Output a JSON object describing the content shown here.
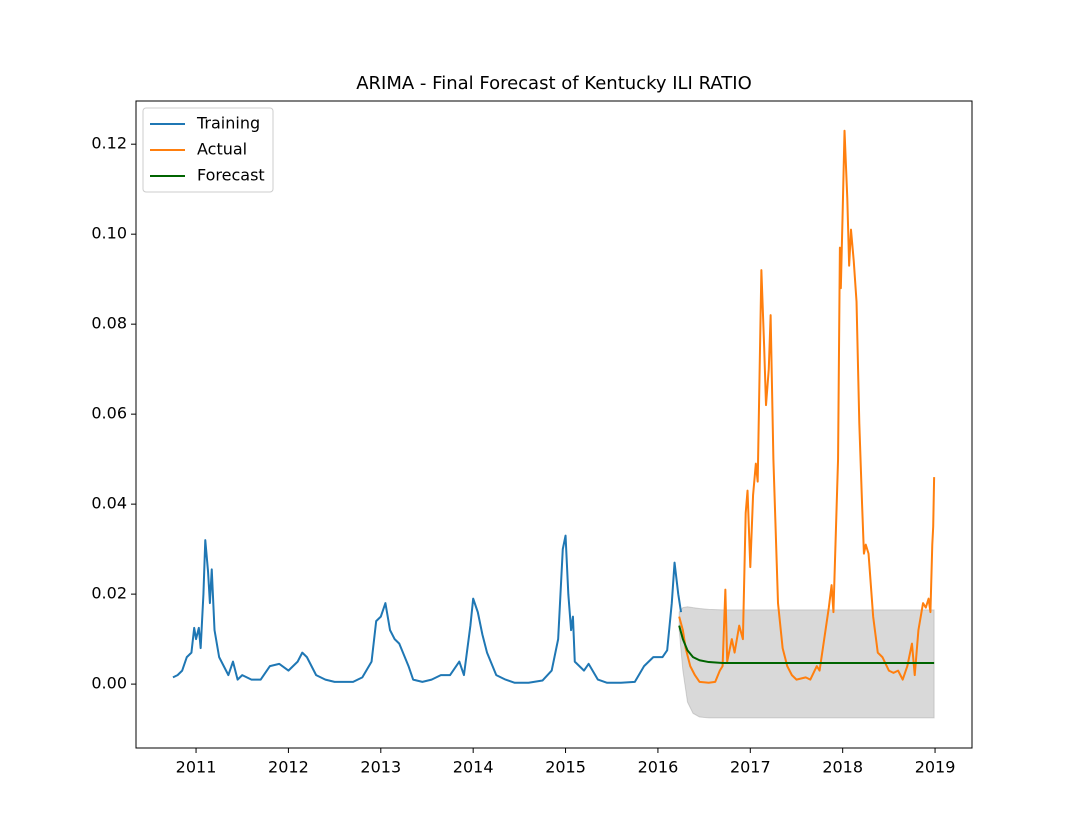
{
  "chart_data": {
    "type": "line",
    "title": "ARIMA - Final Forecast of Kentucky ILI RATIO",
    "xlim": [
      2010.35,
      2019.4
    ],
    "xticks": [
      2011,
      2012,
      2013,
      2014,
      2015,
      2016,
      2017,
      2018,
      2019
    ],
    "ylim": [
      -0.0142,
      0.1296
    ],
    "yticks": [
      {
        "value": 0,
        "label": "0.00"
      },
      {
        "value": 0.02,
        "label": "0.02"
      },
      {
        "value": 0.04,
        "label": "0.04"
      },
      {
        "value": 0.06,
        "label": "0.06"
      },
      {
        "value": 0.08,
        "label": "0.08"
      },
      {
        "value": 0.1,
        "label": "0.10"
      },
      {
        "value": 0.12,
        "label": "0.12"
      }
    ],
    "legend": "upper left",
    "series": [
      {
        "name": "Training",
        "color": "#1f77b4",
        "x": [
          2010.75,
          2010.8,
          2010.85,
          2010.9,
          2010.95,
          2010.98,
          2011.0,
          2011.03,
          2011.05,
          2011.08,
          2011.1,
          2011.13,
          2011.15,
          2011.17,
          2011.2,
          2011.25,
          2011.3,
          2011.35,
          2011.4,
          2011.45,
          2011.5,
          2011.6,
          2011.7,
          2011.8,
          2011.9,
          2012.0,
          2012.1,
          2012.15,
          2012.2,
          2012.3,
          2012.4,
          2012.5,
          2012.6,
          2012.7,
          2012.8,
          2012.9,
          2012.95,
          2013.0,
          2013.05,
          2013.1,
          2013.15,
          2013.2,
          2013.3,
          2013.35,
          2013.45,
          2013.55,
          2013.65,
          2013.75,
          2013.85,
          2013.9,
          2013.97,
          2014.0,
          2014.05,
          2014.1,
          2014.15,
          2014.25,
          2014.35,
          2014.45,
          2014.6,
          2014.75,
          2014.85,
          2014.92,
          2014.97,
          2015.0,
          2015.03,
          2015.06,
          2015.08,
          2015.1,
          2015.2,
          2015.25,
          2015.35,
          2015.45,
          2015.6,
          2015.75,
          2015.85,
          2015.95,
          2016.05,
          2016.1,
          2016.15,
          2016.18,
          2016.22,
          2016.25
        ],
        "values": [
          0.0015,
          0.002,
          0.003,
          0.006,
          0.007,
          0.0125,
          0.01,
          0.0125,
          0.008,
          0.02,
          0.032,
          0.025,
          0.018,
          0.0255,
          0.012,
          0.006,
          0.004,
          0.002,
          0.005,
          0.001,
          0.002,
          0.001,
          0.001,
          0.004,
          0.0045,
          0.003,
          0.005,
          0.007,
          0.006,
          0.002,
          0.001,
          0.0005,
          0.0005,
          0.0005,
          0.0015,
          0.005,
          0.014,
          0.015,
          0.018,
          0.012,
          0.01,
          0.009,
          0.004,
          0.001,
          0.0005,
          0.001,
          0.002,
          0.002,
          0.005,
          0.002,
          0.013,
          0.019,
          0.016,
          0.011,
          0.007,
          0.002,
          0.001,
          0.0003,
          0.0003,
          0.0008,
          0.003,
          0.01,
          0.03,
          0.033,
          0.02,
          0.012,
          0.015,
          0.005,
          0.003,
          0.0045,
          0.001,
          0.0003,
          0.0003,
          0.0005,
          0.004,
          0.006,
          0.006,
          0.0075,
          0.018,
          0.027,
          0.02,
          0.016
        ]
      },
      {
        "name": "Actual",
        "color": "#ff7f0e",
        "x": [
          2016.23,
          2016.27,
          2016.3,
          2016.35,
          2016.4,
          2016.45,
          2016.55,
          2016.62,
          2016.67,
          2016.7,
          2016.73,
          2016.75,
          2016.8,
          2016.83,
          2016.88,
          2016.92,
          2016.95,
          2016.97,
          2017.0,
          2017.03,
          2017.06,
          2017.08,
          2017.12,
          2017.15,
          2017.17,
          2017.2,
          2017.22,
          2017.25,
          2017.3,
          2017.35,
          2017.4,
          2017.45,
          2017.5,
          2017.6,
          2017.65,
          2017.72,
          2017.75,
          2017.8,
          2017.85,
          2017.88,
          2017.9,
          2017.95,
          2017.97,
          2017.98,
          2018.0,
          2018.02,
          2018.05,
          2018.07,
          2018.09,
          2018.12,
          2018.15,
          2018.18,
          2018.21,
          2018.23,
          2018.25,
          2018.28,
          2018.33,
          2018.38,
          2018.43,
          2018.5,
          2018.55,
          2018.6,
          2018.65,
          2018.7,
          2018.75,
          2018.78,
          2018.82,
          2018.87,
          2018.9,
          2018.93,
          2018.95,
          2018.97,
          2018.98,
          2018.99
        ],
        "values": [
          0.015,
          0.012,
          0.008,
          0.004,
          0.002,
          0.0005,
          0.0003,
          0.0005,
          0.003,
          0.004,
          0.021,
          0.005,
          0.01,
          0.007,
          0.013,
          0.01,
          0.038,
          0.043,
          0.026,
          0.042,
          0.049,
          0.045,
          0.092,
          0.075,
          0.062,
          0.07,
          0.082,
          0.05,
          0.018,
          0.008,
          0.004,
          0.002,
          0.001,
          0.0015,
          0.001,
          0.004,
          0.003,
          0.01,
          0.017,
          0.022,
          0.016,
          0.05,
          0.097,
          0.088,
          0.105,
          0.123,
          0.108,
          0.093,
          0.101,
          0.094,
          0.085,
          0.058,
          0.04,
          0.029,
          0.031,
          0.029,
          0.015,
          0.007,
          0.006,
          0.003,
          0.0025,
          0.003,
          0.001,
          0.004,
          0.009,
          0.002,
          0.012,
          0.018,
          0.017,
          0.019,
          0.016,
          0.031,
          0.035,
          0.046
        ]
      },
      {
        "name": "Forecast",
        "color": "#006400",
        "x": [
          2016.23,
          2016.27,
          2016.32,
          2016.38,
          2016.45,
          2016.55,
          2016.7,
          2017.0,
          2018.0,
          2018.99
        ],
        "values": [
          0.013,
          0.01,
          0.0075,
          0.006,
          0.0053,
          0.0049,
          0.0047,
          0.0047,
          0.0047,
          0.0047
        ],
        "lower": [
          0.012,
          0.003,
          -0.004,
          -0.0065,
          -0.0073,
          -0.0075,
          -0.0075,
          -0.0075,
          -0.0075,
          -0.0075
        ],
        "upper": [
          0.016,
          0.017,
          0.0172,
          0.017,
          0.0168,
          0.0166,
          0.0165,
          0.0165,
          0.0165,
          0.0165
        ]
      }
    ]
  }
}
